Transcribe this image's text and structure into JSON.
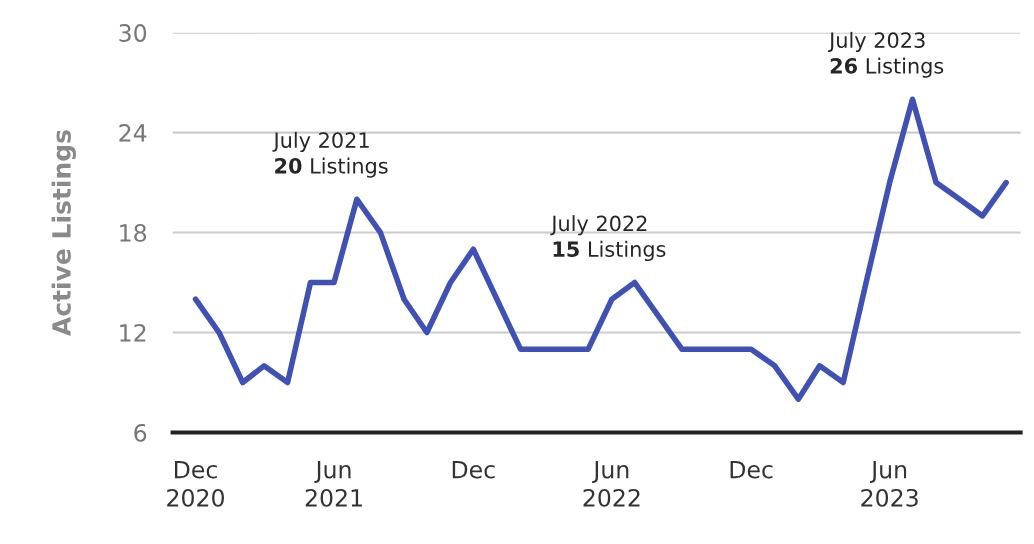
{
  "chart_data": {
    "type": "line",
    "ylabel": "Active Listings",
    "x": [
      "2020-12",
      "2021-01",
      "2021-02",
      "2021-03",
      "2021-04",
      "2021-05",
      "2021-06",
      "2021-07",
      "2021-08",
      "2021-09",
      "2021-10",
      "2021-11",
      "2021-12",
      "2022-01",
      "2022-02",
      "2022-03",
      "2022-04",
      "2022-05",
      "2022-06",
      "2022-07",
      "2022-08",
      "2022-09",
      "2022-10",
      "2022-11",
      "2022-12",
      "2023-01",
      "2023-02",
      "2023-03",
      "2023-04",
      "2023-05",
      "2023-06",
      "2023-07",
      "2023-08",
      "2023-09",
      "2023-10",
      "2023-11"
    ],
    "series": [
      {
        "color": "#3f51b5",
        "values": [
          14,
          12,
          9,
          10,
          9,
          15,
          15,
          20,
          18,
          14,
          12,
          15,
          17,
          14,
          11,
          11,
          11,
          11,
          14,
          15,
          13,
          11,
          11,
          11,
          11,
          10,
          8,
          10,
          9,
          15,
          21,
          26,
          21,
          20,
          19,
          21
        ]
      }
    ],
    "xlim": [
      "2020-11-01",
      "2023-11-20"
    ],
    "xticks": [
      {
        "value": "2020-12",
        "label": "Dec\n2020"
      },
      {
        "value": "2021-06",
        "label": "Jun\n2021"
      },
      {
        "value": "2021-12",
        "label": "Dec"
      },
      {
        "value": "2022-06",
        "label": "Jun\n2022"
      },
      {
        "value": "2022-12",
        "label": "Dec"
      },
      {
        "value": "2023-06",
        "label": "Jun\n2023"
      }
    ],
    "ylim": [
      6,
      30
    ],
    "yticks": [
      6,
      12,
      18,
      24,
      30
    ],
    "grid": "y",
    "marker": "none",
    "line_style": "solid",
    "legend": false,
    "annotations": [
      {
        "text": "July 2021\n20 Listings",
        "x": "2021-07",
        "y": 20
      },
      {
        "text": "July 2022\n15 Listings",
        "x": "2022-07",
        "y": 15
      },
      {
        "text": "July 2023\n26 Listings",
        "x": "2023-07",
        "y": 26
      }
    ]
  }
}
